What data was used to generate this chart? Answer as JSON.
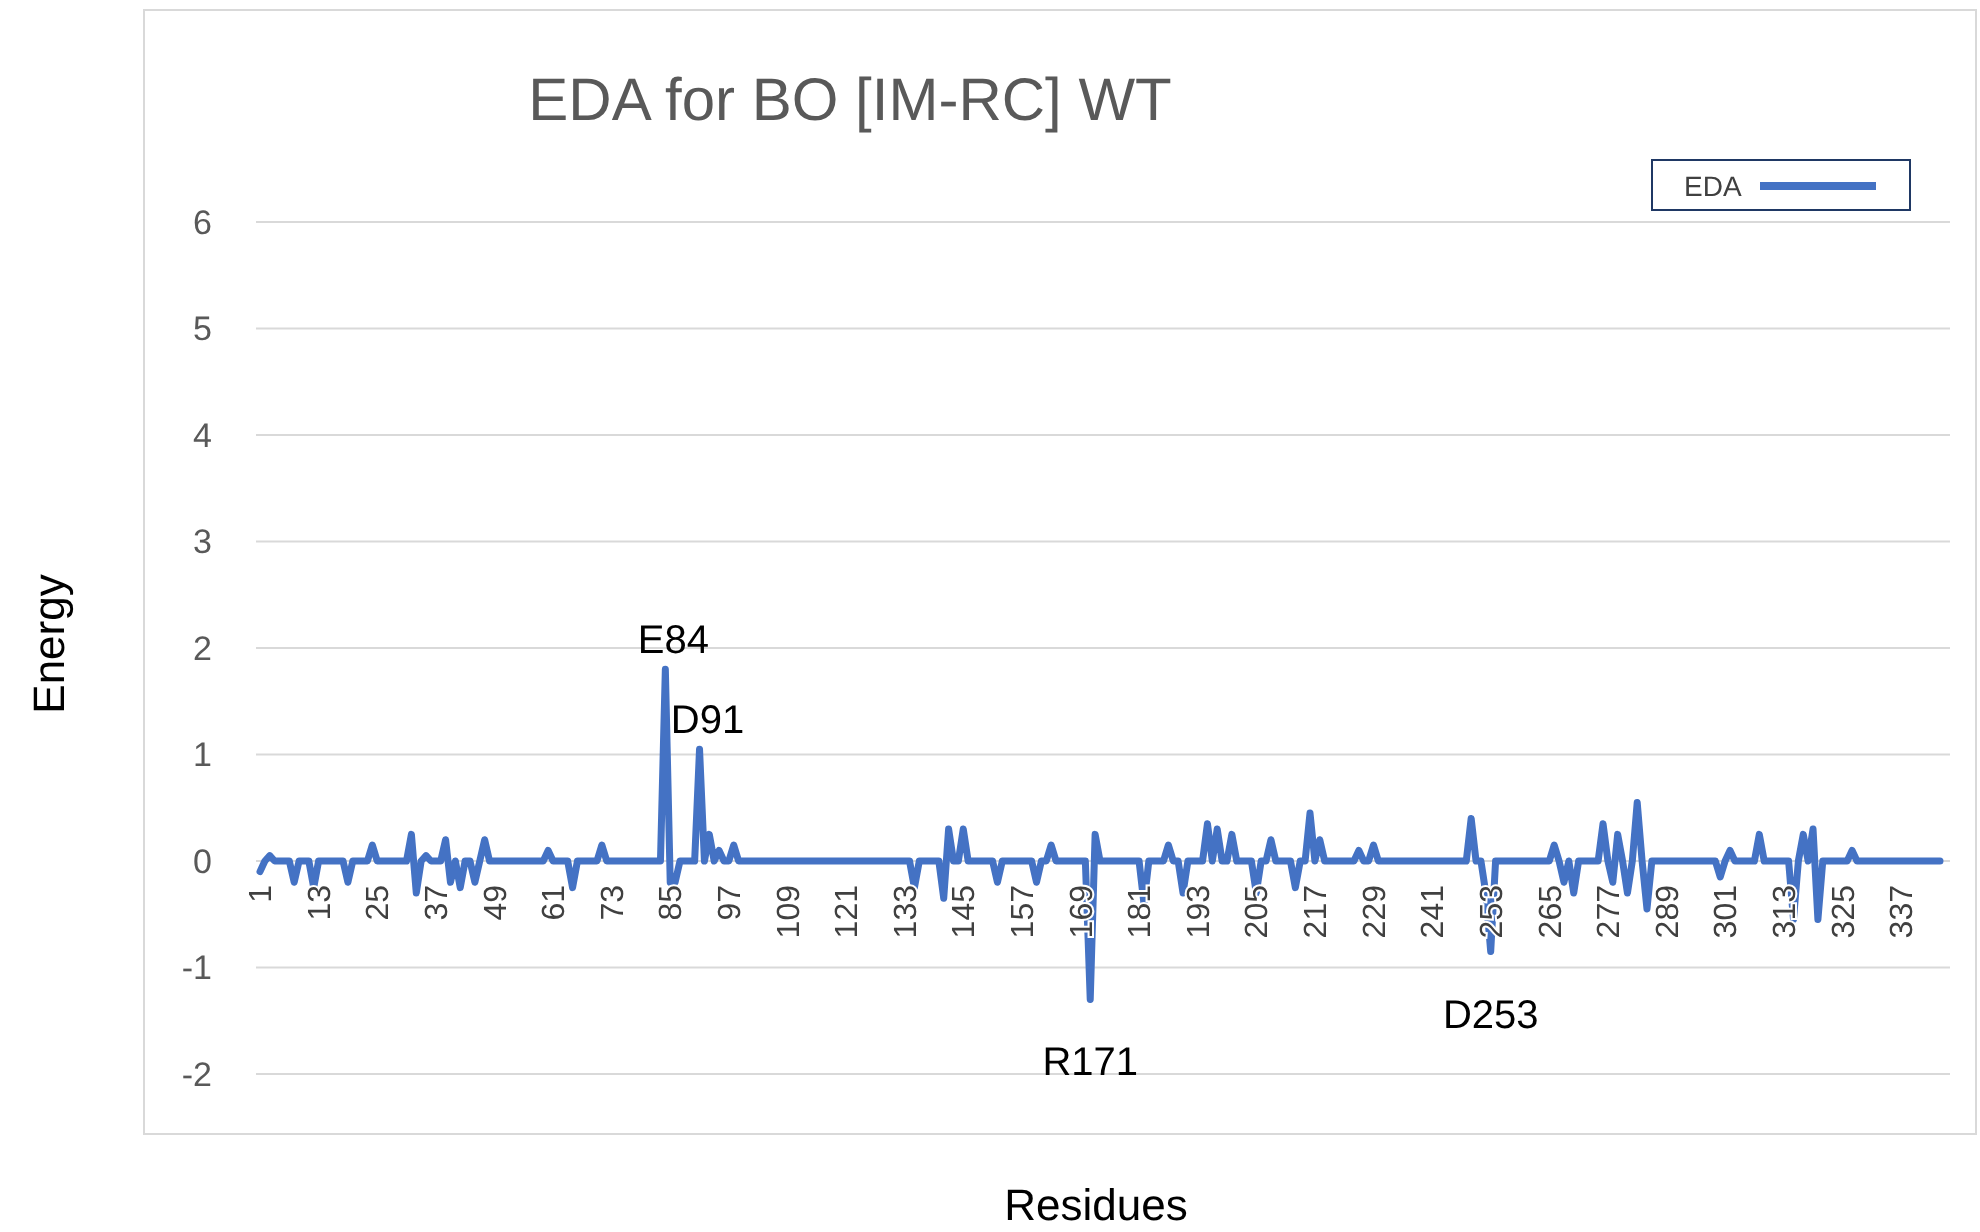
{
  "chart_data": {
    "type": "line",
    "title": "EDA for BO [IM-RC] WT",
    "xlabel": "Residues",
    "ylabel": "Energy",
    "categories": [
      "1",
      null,
      null,
      null,
      null,
      null,
      null,
      null,
      null,
      null,
      null,
      null,
      "13",
      null,
      null,
      null,
      null,
      null,
      null,
      null,
      null,
      null,
      null,
      null,
      "25",
      null,
      null,
      null,
      null,
      null,
      null,
      null,
      null,
      null,
      null,
      null,
      "37",
      null,
      null,
      null,
      null,
      null,
      null,
      null,
      null,
      null,
      null,
      null,
      "49",
      null,
      null,
      null,
      null,
      null,
      null,
      null,
      null,
      null,
      null,
      null,
      "61",
      null,
      null,
      null,
      null,
      null,
      null,
      null,
      null,
      null,
      null,
      null,
      "73",
      null,
      null,
      null,
      null,
      null,
      null,
      null,
      null,
      null,
      null,
      null,
      "85",
      null,
      null,
      null,
      null,
      null,
      null,
      null,
      null,
      null,
      null,
      null,
      "97",
      null,
      null,
      null,
      null,
      null,
      null,
      null,
      null,
      null,
      null,
      null,
      "109",
      null,
      null,
      null,
      null,
      null,
      null,
      null,
      null,
      null,
      null,
      null,
      "121",
      null,
      null,
      null,
      null,
      null,
      null,
      null,
      null,
      null,
      null,
      null,
      "133",
      null,
      null,
      null,
      null,
      null,
      null,
      null,
      null,
      null,
      null,
      null,
      "145",
      null,
      null,
      null,
      null,
      null,
      null,
      null,
      null,
      null,
      null,
      null,
      "157",
      null,
      null,
      null,
      null,
      null,
      null,
      null,
      null,
      null,
      null,
      null,
      "169",
      null,
      null,
      null,
      null,
      null,
      null,
      null,
      null,
      null,
      null,
      null,
      "181",
      null,
      null,
      null,
      null,
      null,
      null,
      null,
      null,
      null,
      null,
      null,
      "193",
      null,
      null,
      null,
      null,
      null,
      null,
      null,
      null,
      null,
      null,
      null,
      "205",
      null,
      null,
      null,
      null,
      null,
      null,
      null,
      null,
      null,
      null,
      null,
      "217",
      null,
      null,
      null,
      null,
      null,
      null,
      null,
      null,
      null,
      null,
      null,
      "229",
      null,
      null,
      null,
      null,
      null,
      null,
      null,
      null,
      null,
      null,
      null,
      "241",
      null,
      null,
      null,
      null,
      null,
      null,
      null,
      null,
      null,
      null,
      null,
      "253",
      null,
      null,
      null,
      null,
      null,
      null,
      null,
      null,
      null,
      null,
      null,
      "265",
      null,
      null,
      null,
      null,
      null,
      null,
      null,
      null,
      null,
      null,
      null,
      "277",
      null,
      null,
      null,
      null,
      null,
      null,
      null,
      null,
      null,
      null,
      null,
      "289",
      null,
      null,
      null,
      null,
      null,
      null,
      null,
      null,
      null,
      null,
      null,
      "301",
      null,
      null,
      null,
      null,
      null,
      null,
      null,
      null,
      null,
      null,
      null,
      "313",
      null,
      null,
      null,
      null,
      null,
      null,
      null,
      null,
      null,
      null,
      null,
      "325",
      null,
      null,
      null,
      null,
      null,
      null,
      null,
      null,
      null,
      null,
      null,
      "337",
      null,
      null,
      null,
      null,
      null,
      null,
      null,
      null
    ],
    "series": [
      {
        "name": "EDA",
        "color": "#4472c4",
        "values": [
          -0.1,
          0,
          0.05,
          0,
          0,
          0,
          0,
          -0.2,
          0,
          0,
          0,
          -0.25,
          0,
          0,
          0,
          0,
          0,
          0,
          -0.2,
          0,
          0,
          0,
          0,
          0.15,
          0,
          0,
          0,
          0,
          0,
          0,
          0,
          0.25,
          -0.3,
          0,
          0.05,
          0,
          0,
          0,
          0.2,
          -0.2,
          0,
          -0.25,
          0,
          0,
          -0.2,
          0,
          0.2,
          0,
          0,
          0,
          0,
          0,
          0,
          0,
          0,
          0,
          0,
          0,
          0,
          0.1,
          0,
          0,
          0,
          0,
          -0.25,
          0,
          0,
          0,
          0,
          0,
          0.15,
          0,
          0,
          0,
          0,
          0,
          0,
          0,
          0,
          0,
          0,
          0,
          0,
          1.8,
          -0.2,
          -0.2,
          0,
          0,
          0,
          0,
          1.05,
          0,
          0.25,
          0,
          0.1,
          0,
          0,
          0.15,
          0,
          0,
          0,
          0,
          0,
          0,
          0,
          0,
          0,
          0,
          0,
          0,
          0,
          0,
          0,
          0,
          0,
          0,
          0,
          0,
          0,
          0,
          0,
          0,
          0,
          0,
          0,
          0,
          0,
          0,
          0,
          0,
          0,
          0,
          0,
          0,
          -0.25,
          0,
          0,
          0,
          0,
          0,
          -0.35,
          0.3,
          0,
          0,
          0.3,
          0,
          0,
          0,
          0,
          0,
          0,
          -0.2,
          0,
          0,
          0,
          0,
          0,
          0,
          0,
          -0.2,
          0,
          0,
          0.15,
          0,
          0,
          0,
          0,
          0,
          0,
          0,
          -1.3,
          0.25,
          0,
          0,
          0,
          0,
          0,
          0,
          0,
          0,
          0,
          -0.4,
          0,
          0,
          0,
          0,
          0.15,
          0,
          0,
          -0.3,
          0,
          0,
          0,
          0,
          0.35,
          0,
          0.3,
          0,
          0,
          0.25,
          0,
          0,
          0,
          0,
          -0.3,
          0,
          0,
          0.2,
          0,
          0,
          0,
          0,
          -0.25,
          0,
          0,
          0.45,
          0,
          0.2,
          0,
          0,
          0,
          0,
          0,
          0,
          0,
          0.1,
          0,
          0,
          0.15,
          0,
          0,
          0,
          0,
          0,
          0,
          0,
          0,
          0,
          0,
          0,
          0,
          0,
          0,
          0,
          0,
          0,
          0,
          0,
          0.4,
          0,
          0,
          -0.3,
          -0.85,
          0,
          0,
          0,
          0,
          0,
          0,
          0,
          0,
          0,
          0,
          0,
          0,
          0.15,
          0,
          -0.2,
          0,
          -0.3,
          0,
          0,
          0,
          0,
          0,
          0.35,
          0,
          -0.2,
          0.25,
          0,
          -0.3,
          0,
          0.55,
          0,
          -0.45,
          0,
          0,
          0,
          0,
          0,
          0,
          0,
          0,
          0,
          0,
          0,
          0,
          0,
          0,
          -0.15,
          0,
          0.1,
          0,
          0,
          0,
          0,
          0,
          0.25,
          0,
          0,
          0,
          0,
          0,
          0,
          -0.55,
          0,
          0.25,
          0,
          0.3,
          -0.55,
          0,
          0,
          0,
          0,
          0,
          0,
          0.1,
          0,
          0,
          0,
          0,
          0,
          0,
          0,
          0,
          0,
          0,
          0,
          0,
          0,
          0,
          0,
          0,
          0,
          0
        ]
      }
    ],
    "ylim": [
      -2,
      6
    ],
    "yticks": [
      -2,
      -1,
      0,
      1,
      2,
      3,
      4,
      5,
      6
    ],
    "grid": "y",
    "legend": "top right",
    "marker": "none",
    "line_style": "solid",
    "annotations": [
      {
        "text": "E84",
        "y": 1.8
      },
      {
        "text": "D91",
        "y": 1.05
      },
      {
        "text": "R171",
        "y": -1.3
      },
      {
        "text": "D253",
        "y": -0.85
      }
    ]
  }
}
